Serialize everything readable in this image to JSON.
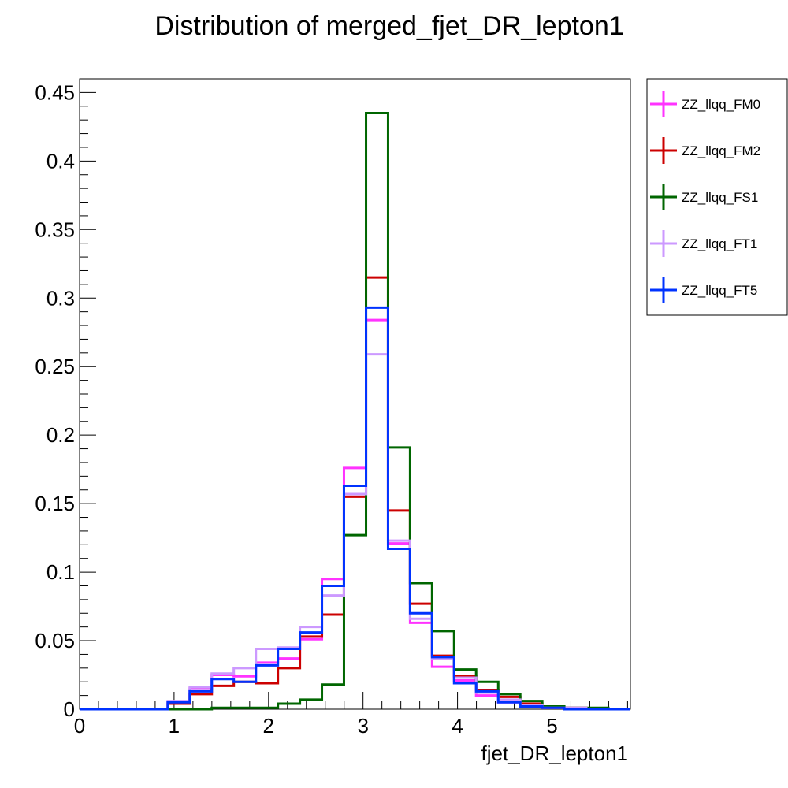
{
  "chart_data": {
    "type": "line",
    "subtype": "step-histogram",
    "title": "Distribution of merged_fjet_DR_lepton1",
    "xlabel": "fjet_DR_lepton1",
    "ylabel": "",
    "xlim": [
      0,
      5.83
    ],
    "ylim": [
      0,
      0.46
    ],
    "x_ticks": [
      0,
      1,
      2,
      3,
      4,
      5
    ],
    "x_tick_labels": [
      "0",
      "1",
      "2",
      "3",
      "4",
      "5"
    ],
    "y_ticks": [
      0,
      0.05,
      0.1,
      0.15,
      0.2,
      0.25,
      0.3,
      0.35,
      0.4,
      0.45
    ],
    "y_tick_labels": [
      "0",
      "0.05",
      "0.1",
      "0.15",
      "0.2",
      "0.25",
      "0.3",
      "0.35",
      "0.4",
      "0.45"
    ],
    "grid": false,
    "legend_position": "right-outside",
    "bin_edges": [
      0,
      0.233,
      0.466,
      0.7,
      0.933,
      1.166,
      1.399,
      1.632,
      1.866,
      2.099,
      2.332,
      2.565,
      2.798,
      3.032,
      3.265,
      3.498,
      3.731,
      3.964,
      4.197,
      4.431,
      4.664,
      4.897,
      5.13,
      5.363,
      5.596,
      5.83
    ],
    "series": [
      {
        "name": "ZZ_llqq_FM0",
        "color": "#ff33ff",
        "values": [
          0,
          0,
          0,
          0,
          0.005,
          0.015,
          0.025,
          0.024,
          0.034,
          0.037,
          0.051,
          0.095,
          0.176,
          0.284,
          0.121,
          0.063,
          0.031,
          0.021,
          0.01,
          0.005,
          0.002,
          0.001,
          0.001,
          0,
          0
        ]
      },
      {
        "name": "ZZ_llqq_FM2",
        "color": "#cc0000",
        "values": [
          0,
          0,
          0,
          0,
          0.004,
          0.011,
          0.017,
          0.02,
          0.019,
          0.03,
          0.053,
          0.069,
          0.155,
          0.315,
          0.145,
          0.077,
          0.039,
          0.024,
          0.014,
          0.009,
          0.004,
          0.001,
          0.001,
          0,
          0
        ]
      },
      {
        "name": "ZZ_llqq_FS1",
        "color": "#006600",
        "values": [
          0,
          0,
          0,
          0,
          0,
          0,
          0.001,
          0.001,
          0.001,
          0.004,
          0.007,
          0.018,
          0.127,
          0.435,
          0.191,
          0.092,
          0.057,
          0.029,
          0.02,
          0.011,
          0.006,
          0.002,
          0.001,
          0.001,
          0
        ]
      },
      {
        "name": "ZZ_llqq_FT1",
        "color": "#cc99ff",
        "values": [
          0,
          0,
          0,
          0,
          0.006,
          0.016,
          0.026,
          0.03,
          0.044,
          0.045,
          0.06,
          0.083,
          0.157,
          0.259,
          0.123,
          0.066,
          0.037,
          0.023,
          0.012,
          0.007,
          0.003,
          0.001,
          0.001,
          0,
          0
        ]
      },
      {
        "name": "ZZ_llqq_FT5",
        "color": "#0033ff",
        "values": [
          0,
          0,
          0,
          0,
          0.005,
          0.013,
          0.022,
          0.02,
          0.032,
          0.044,
          0.056,
          0.09,
          0.163,
          0.293,
          0.117,
          0.07,
          0.038,
          0.019,
          0.013,
          0.005,
          0.002,
          0.001,
          0,
          0,
          0
        ]
      }
    ]
  }
}
